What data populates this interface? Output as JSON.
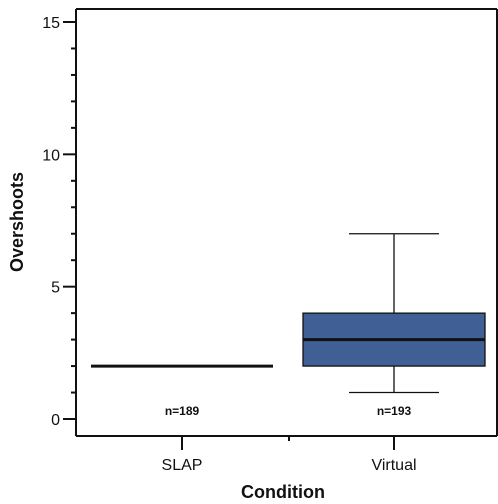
{
  "chart_data": {
    "type": "box",
    "xlabel": "Condition",
    "ylabel": "Overshoots",
    "ylim": [
      0,
      15
    ],
    "y_ticks": [
      0,
      5,
      10,
      15
    ],
    "y_minor_step": 1,
    "categories": [
      "SLAP",
      "Virtual"
    ],
    "groups": [
      {
        "category": "SLAP",
        "n_label": "n=189",
        "min": 2,
        "q1": 2,
        "median": 2,
        "q3": 2,
        "max": 2,
        "color": "#3f5f95"
      },
      {
        "category": "Virtual",
        "n_label": "n=193",
        "min": 1,
        "q1": 2,
        "median": 3,
        "q3": 4,
        "max": 7,
        "color": "#3f5f95"
      }
    ],
    "grid": false,
    "legend": "none"
  }
}
